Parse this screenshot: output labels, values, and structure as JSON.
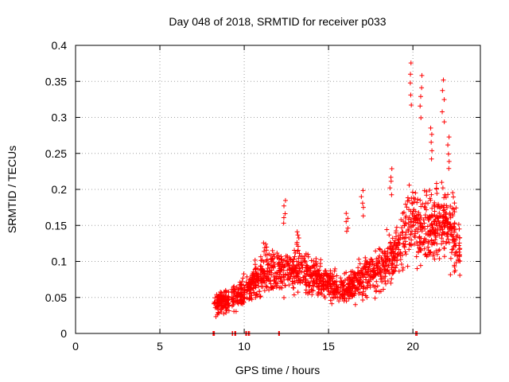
{
  "chart_data": {
    "type": "scatter",
    "title": "Day 048 of 2018, SRMTID for receiver p033",
    "xlabel": "GPS time / hours",
    "ylabel": "SRMTID / TECUs",
    "xlim": [
      0,
      24
    ],
    "ylim": [
      0,
      0.4
    ],
    "grid": true,
    "marker": "+",
    "color": "#ff0000",
    "x_ticks": [
      "0",
      "5",
      "10",
      "15",
      "20"
    ],
    "y_ticks": [
      "0",
      "0.05",
      "0.1",
      "0.15",
      "0.2",
      "0.25",
      "0.3",
      "0.35",
      "0.4"
    ],
    "x_tick_values": [
      0,
      5,
      10,
      15,
      20
    ],
    "y_tick_values": [
      0,
      0.05,
      0.1,
      0.15,
      0.2,
      0.25,
      0.3,
      0.35,
      0.4
    ],
    "coverage_start_hours": 8.2,
    "coverage_end_hours": 22.8,
    "zero_markers_hours": [
      8.2,
      9.3,
      9.5,
      10.1,
      10.3,
      12.1,
      20.2
    ],
    "trend": [
      {
        "x": 8.2,
        "y": 0.04
      },
      {
        "x": 9.0,
        "y": 0.045
      },
      {
        "x": 9.8,
        "y": 0.055
      },
      {
        "x": 10.5,
        "y": 0.07
      },
      {
        "x": 11.5,
        "y": 0.085
      },
      {
        "x": 12.5,
        "y": 0.09
      },
      {
        "x": 13.5,
        "y": 0.088
      },
      {
        "x": 14.5,
        "y": 0.075
      },
      {
        "x": 15.5,
        "y": 0.06
      },
      {
        "x": 16.0,
        "y": 0.06
      },
      {
        "x": 17.0,
        "y": 0.075
      },
      {
        "x": 18.0,
        "y": 0.09
      },
      {
        "x": 19.0,
        "y": 0.11
      },
      {
        "x": 19.8,
        "y": 0.15
      },
      {
        "x": 20.5,
        "y": 0.14
      },
      {
        "x": 21.5,
        "y": 0.15
      },
      {
        "x": 22.0,
        "y": 0.16
      },
      {
        "x": 22.8,
        "y": 0.11
      }
    ],
    "spikes": [
      {
        "x": 8.5,
        "y": 0.055
      },
      {
        "x": 10.4,
        "y": 0.06
      },
      {
        "x": 11.2,
        "y": 0.13
      },
      {
        "x": 12.4,
        "y": 0.185
      },
      {
        "x": 13.2,
        "y": 0.145
      },
      {
        "x": 16.1,
        "y": 0.17
      },
      {
        "x": 17.0,
        "y": 0.2
      },
      {
        "x": 18.7,
        "y": 0.23
      },
      {
        "x": 19.9,
        "y": 0.38
      },
      {
        "x": 20.5,
        "y": 0.36
      },
      {
        "x": 21.1,
        "y": 0.29
      },
      {
        "x": 21.8,
        "y": 0.355
      },
      {
        "x": 22.1,
        "y": 0.275
      },
      {
        "x": 22.4,
        "y": 0.2
      }
    ]
  }
}
